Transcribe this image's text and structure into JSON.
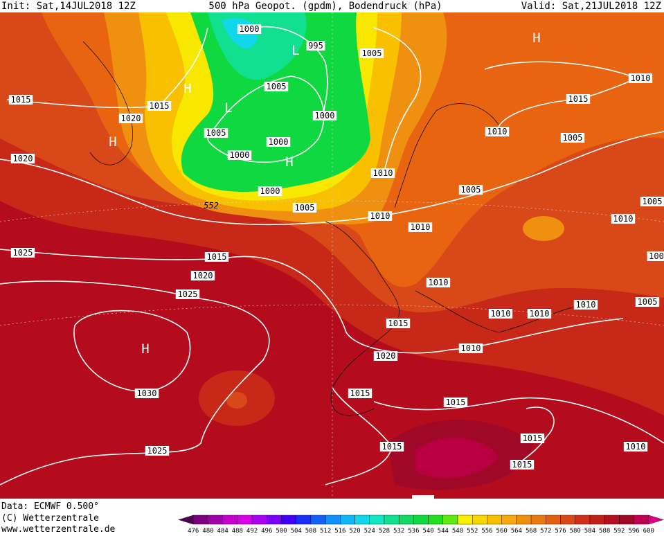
{
  "header": {
    "init": "Init: Sat,14JUL2018 12Z",
    "title": "500 hPa Geopot. (gpdm), Bodendruck (hPa)",
    "valid": "Valid: Sat,21JUL2018 12Z"
  },
  "map": {
    "isobar_labels": [
      "1000",
      "995",
      "1005",
      "1005",
      "1015",
      "1020",
      "1015",
      "1000",
      "1005",
      "1000",
      "1000",
      "1010",
      "1000",
      "552",
      "1005",
      "1010",
      "1010",
      "1005",
      "1010",
      "1005",
      "1015",
      "1010",
      "1020",
      "1025",
      "1015",
      "1020",
      "1025",
      "1010",
      "1015",
      "1010",
      "1010",
      "1010",
      "1005",
      "1005",
      "1010",
      "100",
      "1010",
      "1020",
      "1030",
      "1015",
      "1015",
      "1015",
      "1015",
      "1015",
      "1010",
      "1025"
    ],
    "pressure_centers": [
      "H",
      "H",
      "H",
      "H",
      "H",
      "L",
      "L"
    ]
  },
  "footer": {
    "data": "Data: ECMWF  0.500°",
    "copyright": "(C) Wetterzentrale",
    "url": "www.wetterzentrale.de"
  },
  "colorbar": {
    "levels": [
      476,
      480,
      484,
      488,
      492,
      496,
      500,
      504,
      508,
      512,
      516,
      520,
      524,
      528,
      532,
      536,
      540,
      544,
      548,
      552,
      556,
      560,
      564,
      568,
      572,
      576,
      580,
      584,
      588,
      592,
      596,
      600
    ],
    "colors": [
      "#4b0050",
      "#7a007f",
      "#a000a8",
      "#c400cc",
      "#d800e8",
      "#a800f0",
      "#7800f8",
      "#4000f8",
      "#1830f8",
      "#1060f8",
      "#1090f8",
      "#10b8f8",
      "#10d8e8",
      "#10e8c0",
      "#10e090",
      "#10d860",
      "#10d840",
      "#20e020",
      "#60e810",
      "#f8f000",
      "#f8d800",
      "#f8c000",
      "#f8a810",
      "#f09010",
      "#e87810",
      "#e06010",
      "#d84818",
      "#d03018",
      "#c02018",
      "#b01020",
      "#a00828",
      "#c00050",
      "#e00080"
    ]
  }
}
